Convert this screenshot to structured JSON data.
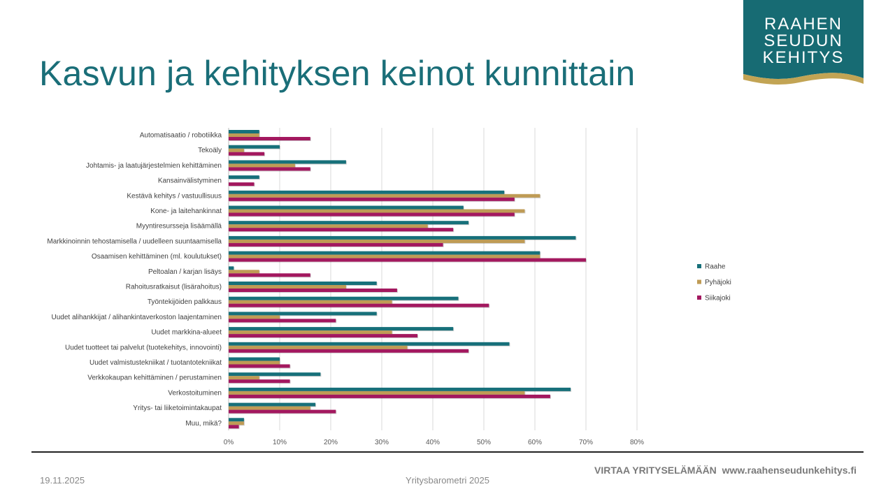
{
  "slide": {
    "title": "Kasvun ja kehityksen keinot kunnittain",
    "logo_text": [
      "RAAHEN",
      "SEUDUN",
      "KEHITYS"
    ],
    "footer_date": "19.11.2025",
    "footer_center": "Yritysbarometri 2025",
    "footer_slogan": "VIRTAA YRITYSELÄMÄÄN",
    "footer_url": "www.raahenseudunkehitys.fi"
  },
  "chart_data": {
    "type": "bar",
    "orientation": "horizontal",
    "categories": [
      "Automatisaatio / robotiikka",
      "Tekoäly",
      "Johtamis- ja laatujärjestelmien kehittäminen",
      "Kansainvälistyminen",
      "Kestävä kehitys / vastuullisuus",
      "Kone- ja laitehankinnat",
      "Myyntiresursseja lisäämällä",
      "Markkinoinnin tehostamisella / uudelleen suuntaamisella",
      "Osaamisen kehittäminen (ml. koulutukset)",
      "Peltoalan / karjan lisäys",
      "Rahoitusratkaisut (lisärahoitus)",
      "Työntekijöiden palkkaus",
      "Uudet alihankkijat / alihankintaverkoston laajentaminen",
      "Uudet markkina-alueet",
      "Uudet tuotteet tai palvelut (tuotekehitys, innovointi)",
      "Uudet valmistustekniikat / tuotantotekniikat",
      "Verkkokaupan kehittäminen / perustaminen",
      "Verkostoituminen",
      "Yritys- tai liiketoimintakaupat",
      "Muu, mikä?"
    ],
    "series": [
      {
        "name": "Raahe",
        "color": "#17707a",
        "values": [
          6,
          10,
          23,
          6,
          54,
          46,
          47,
          68,
          61,
          1,
          29,
          45,
          29,
          44,
          55,
          10,
          18,
          67,
          17,
          3
        ]
      },
      {
        "name": "Pyhäjoki",
        "color": "#bf9b55",
        "values": [
          6,
          3,
          13,
          0,
          61,
          58,
          39,
          58,
          61,
          6,
          23,
          32,
          10,
          32,
          35,
          10,
          6,
          58,
          16,
          3
        ]
      },
      {
        "name": "Siikajoki",
        "color": "#a3185f",
        "values": [
          16,
          7,
          16,
          5,
          56,
          56,
          44,
          42,
          70,
          16,
          33,
          51,
          21,
          37,
          47,
          12,
          12,
          63,
          21,
          2
        ]
      }
    ],
    "xlim": [
      0,
      80
    ],
    "xticks": [
      "0%",
      "10%",
      "20%",
      "30%",
      "40%",
      "50%",
      "60%",
      "70%",
      "80%"
    ],
    "grid": true,
    "legend": "right"
  }
}
